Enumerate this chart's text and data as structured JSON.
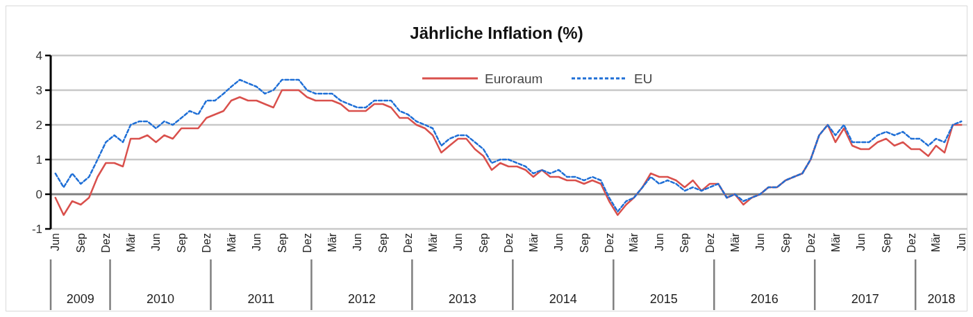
{
  "chart_data": {
    "type": "line",
    "title": "Jährliche Inflation (%)",
    "x": [
      "2009-06",
      "2009-07",
      "2009-08",
      "2009-09",
      "2009-10",
      "2009-11",
      "2009-12",
      "2010-01",
      "2010-02",
      "2010-03",
      "2010-04",
      "2010-05",
      "2010-06",
      "2010-07",
      "2010-08",
      "2010-09",
      "2010-10",
      "2010-11",
      "2010-12",
      "2011-01",
      "2011-02",
      "2011-03",
      "2011-04",
      "2011-05",
      "2011-06",
      "2011-07",
      "2011-08",
      "2011-09",
      "2011-10",
      "2011-11",
      "2011-12",
      "2012-01",
      "2012-02",
      "2012-03",
      "2012-04",
      "2012-05",
      "2012-06",
      "2012-07",
      "2012-08",
      "2012-09",
      "2012-10",
      "2012-11",
      "2012-12",
      "2013-01",
      "2013-02",
      "2013-03",
      "2013-04",
      "2013-05",
      "2013-06",
      "2013-07",
      "2013-08",
      "2013-09",
      "2013-10",
      "2013-11",
      "2013-12",
      "2014-01",
      "2014-02",
      "2014-03",
      "2014-04",
      "2014-05",
      "2014-06",
      "2014-07",
      "2014-08",
      "2014-09",
      "2014-10",
      "2014-11",
      "2014-12",
      "2015-01",
      "2015-02",
      "2015-03",
      "2015-04",
      "2015-05",
      "2015-06",
      "2015-07",
      "2015-08",
      "2015-09",
      "2015-10",
      "2015-11",
      "2015-12",
      "2016-01",
      "2016-02",
      "2016-03",
      "2016-04",
      "2016-05",
      "2016-06",
      "2016-07",
      "2016-08",
      "2016-09",
      "2016-10",
      "2016-11",
      "2016-12",
      "2017-01",
      "2017-02",
      "2017-03",
      "2017-04",
      "2017-05",
      "2017-06",
      "2017-07",
      "2017-08",
      "2017-09",
      "2017-10",
      "2017-11",
      "2017-12",
      "2018-01",
      "2018-02",
      "2018-03",
      "2018-04",
      "2018-05",
      "2018-06"
    ],
    "series": [
      {
        "name": "Euroraum",
        "color": "#d9504c",
        "line_style": "solid",
        "values": [
          -0.1,
          -0.6,
          -0.2,
          -0.3,
          -0.1,
          0.5,
          0.9,
          0.9,
          0.8,
          1.6,
          1.6,
          1.7,
          1.5,
          1.7,
          1.6,
          1.9,
          1.9,
          1.9,
          2.2,
          2.3,
          2.4,
          2.7,
          2.8,
          2.7,
          2.7,
          2.6,
          2.5,
          3.0,
          3.0,
          3.0,
          2.8,
          2.7,
          2.7,
          2.7,
          2.6,
          2.4,
          2.4,
          2.4,
          2.6,
          2.6,
          2.5,
          2.2,
          2.2,
          2.0,
          1.9,
          1.7,
          1.2,
          1.4,
          1.6,
          1.6,
          1.3,
          1.1,
          0.7,
          0.9,
          0.8,
          0.8,
          0.7,
          0.5,
          0.7,
          0.5,
          0.5,
          0.4,
          0.4,
          0.3,
          0.4,
          0.3,
          -0.2,
          -0.6,
          -0.3,
          -0.1,
          0.2,
          0.6,
          0.5,
          0.5,
          0.4,
          0.2,
          0.4,
          0.1,
          0.3,
          0.3,
          -0.1,
          0.0,
          -0.3,
          -0.1,
          0.0,
          0.2,
          0.2,
          0.4,
          0.5,
          0.6,
          1.0,
          1.7,
          2.0,
          1.5,
          1.9,
          1.4,
          1.3,
          1.3,
          1.5,
          1.6,
          1.4,
          1.5,
          1.3,
          1.3,
          1.1,
          1.4,
          1.2,
          2.0,
          2.0
        ]
      },
      {
        "name": "EU",
        "color": "#1f6fd6",
        "line_style": "dashed",
        "values": [
          0.6,
          0.2,
          0.6,
          0.3,
          0.5,
          1.0,
          1.5,
          1.7,
          1.5,
          2.0,
          2.1,
          2.1,
          1.9,
          2.1,
          2.0,
          2.2,
          2.4,
          2.3,
          2.7,
          2.7,
          2.9,
          3.1,
          3.3,
          3.2,
          3.1,
          2.9,
          3.0,
          3.3,
          3.3,
          3.3,
          3.0,
          2.9,
          2.9,
          2.9,
          2.7,
          2.6,
          2.5,
          2.5,
          2.7,
          2.7,
          2.7,
          2.4,
          2.3,
          2.1,
          2.0,
          1.9,
          1.4,
          1.6,
          1.7,
          1.7,
          1.5,
          1.3,
          0.9,
          1.0,
          1.0,
          0.9,
          0.8,
          0.6,
          0.7,
          0.6,
          0.7,
          0.5,
          0.5,
          0.4,
          0.5,
          0.4,
          -0.1,
          -0.5,
          -0.2,
          -0.1,
          0.2,
          0.5,
          0.3,
          0.4,
          0.3,
          0.1,
          0.2,
          0.1,
          0.2,
          0.3,
          -0.1,
          0.0,
          -0.2,
          -0.1,
          0.0,
          0.2,
          0.2,
          0.4,
          0.5,
          0.6,
          1.0,
          1.7,
          2.0,
          1.7,
          2.0,
          1.5,
          1.5,
          1.5,
          1.7,
          1.8,
          1.7,
          1.8,
          1.6,
          1.6,
          1.4,
          1.6,
          1.5,
          2.0,
          2.1
        ]
      }
    ],
    "xlim": [
      "2009-05-15",
      "2018-06-23"
    ],
    "xticks": [
      {
        "value": "2009-06",
        "label": "Jun"
      },
      {
        "value": "2009-09",
        "label": "Sep"
      },
      {
        "value": "2009-12",
        "label": "Dez"
      },
      {
        "value": "2010-03",
        "label": "Mär"
      },
      {
        "value": "2010-06",
        "label": "Jun"
      },
      {
        "value": "2010-09",
        "label": "Sep"
      },
      {
        "value": "2010-12",
        "label": "Dez"
      },
      {
        "value": "2011-03",
        "label": "Mär"
      },
      {
        "value": "2011-06",
        "label": "Jun"
      },
      {
        "value": "2011-09",
        "label": "Sep"
      },
      {
        "value": "2011-12",
        "label": "Dez"
      },
      {
        "value": "2012-03",
        "label": "Mär"
      },
      {
        "value": "2012-06",
        "label": "Jun"
      },
      {
        "value": "2012-09",
        "label": "Sep"
      },
      {
        "value": "2012-12",
        "label": "Dez"
      },
      {
        "value": "2013-03",
        "label": "Mär"
      },
      {
        "value": "2013-06",
        "label": "Jun"
      },
      {
        "value": "2013-09",
        "label": "Sep"
      },
      {
        "value": "2013-12",
        "label": "Dez"
      },
      {
        "value": "2014-03",
        "label": "Mär"
      },
      {
        "value": "2014-06",
        "label": "Jun"
      },
      {
        "value": "2014-09",
        "label": "Sep"
      },
      {
        "value": "2014-12",
        "label": "Dez"
      },
      {
        "value": "2015-03",
        "label": "Mär"
      },
      {
        "value": "2015-06",
        "label": "Jun"
      },
      {
        "value": "2015-09",
        "label": "Sep"
      },
      {
        "value": "2015-12",
        "label": "Dez"
      },
      {
        "value": "2016-03",
        "label": "Mär"
      },
      {
        "value": "2016-06",
        "label": "Jun"
      },
      {
        "value": "2016-09",
        "label": "Sep"
      },
      {
        "value": "2016-12",
        "label": "Dez"
      },
      {
        "value": "2017-03",
        "label": "Mär"
      },
      {
        "value": "2017-06",
        "label": "Jun"
      },
      {
        "value": "2017-09",
        "label": "Sep"
      },
      {
        "value": "2017-12",
        "label": "Dez"
      },
      {
        "value": "2018-03",
        "label": "Mär"
      },
      {
        "value": "2018-06",
        "label": "Jun"
      }
    ],
    "annotations": [
      "2009",
      "2010",
      "2011",
      "2012",
      "2013",
      "2014",
      "2015",
      "2016",
      "2017",
      "2018"
    ],
    "ylim": [
      -1,
      4
    ],
    "yticks": [
      -1,
      0,
      1,
      2,
      3,
      4
    ],
    "grid": "y",
    "legend": "top",
    "marker": "none"
  }
}
